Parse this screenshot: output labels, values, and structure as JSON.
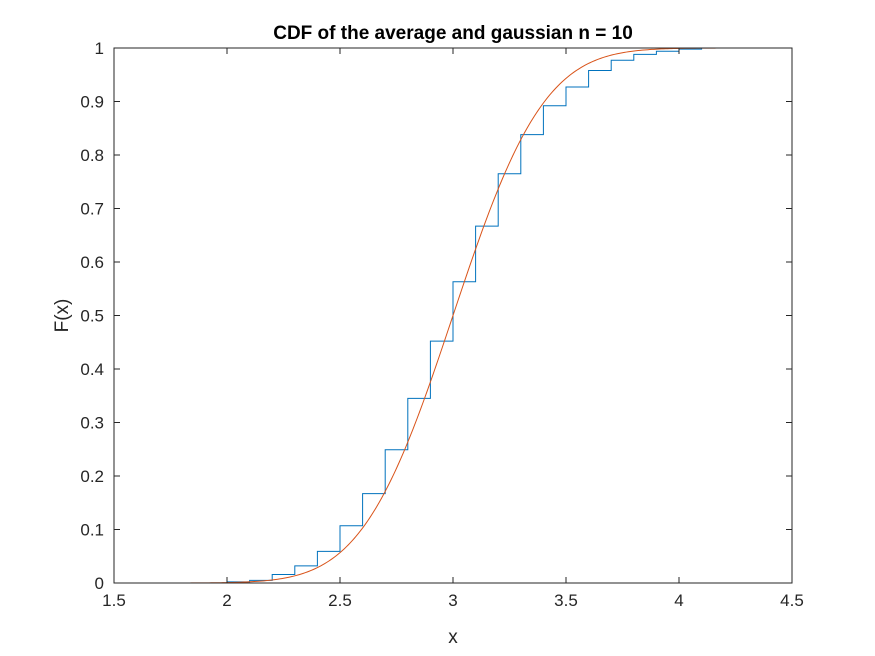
{
  "chart_data": {
    "type": "line",
    "title": "CDF of the average and gaussian n = 10",
    "xlabel": "x",
    "ylabel": "F(x)",
    "xlim": [
      1.5,
      4.5
    ],
    "ylim": [
      0,
      1
    ],
    "xticks": [
      "1.5",
      "2",
      "2.5",
      "3",
      "3.5",
      "4",
      "4.5"
    ],
    "yticks": [
      "0",
      "0.1",
      "0.2",
      "0.3",
      "0.4",
      "0.5",
      "0.6",
      "0.7",
      "0.8",
      "0.9",
      "1"
    ],
    "grid": false,
    "legend": "none",
    "series": [
      {
        "kind": "stairs",
        "color": "#0072BD",
        "x": [
          1.8,
          2.0,
          2.1,
          2.2,
          2.3,
          2.4,
          2.5,
          2.6,
          2.7,
          2.8,
          2.9,
          3.0,
          3.1,
          3.2,
          3.3,
          3.4,
          3.5,
          3.6,
          3.7,
          3.8,
          3.9,
          4.0,
          4.1,
          4.4
        ],
        "y": [
          0.0,
          0.002,
          0.005,
          0.016,
          0.032,
          0.059,
          0.107,
          0.167,
          0.249,
          0.345,
          0.452,
          0.563,
          0.667,
          0.765,
          0.838,
          0.892,
          0.927,
          0.958,
          0.977,
          0.988,
          0.994,
          0.998,
          1.0,
          1.0
        ]
      },
      {
        "kind": "line",
        "color": "#D95319",
        "mean": 3.0,
        "std": 0.316,
        "xrange": [
          1.8,
          4.4
        ]
      }
    ]
  }
}
